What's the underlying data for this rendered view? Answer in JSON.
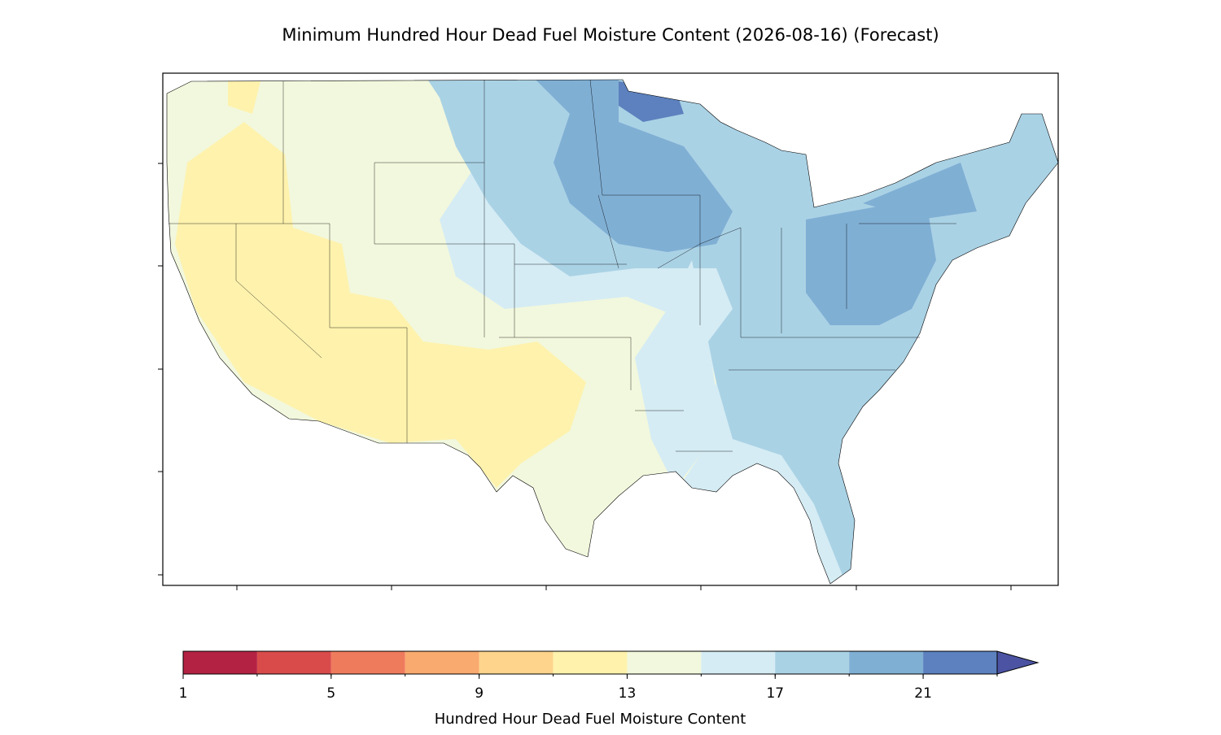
{
  "title": "Minimum Hundred Hour Dead Fuel Moisture Content (2026-08-16) (Forecast)",
  "colorbar": {
    "label": "Hundred Hour Dead Fuel Moisture Content",
    "boundaries": [
      1,
      3,
      5,
      7,
      9,
      11,
      13,
      15,
      17,
      19,
      21,
      23
    ],
    "colors": [
      "#b42243",
      "#d94b4b",
      "#ef7b5d",
      "#f9aa6e",
      "#fed48c",
      "#fef2ad",
      "#f2f8dd",
      "#d5ecf4",
      "#aad2e5",
      "#80afd4",
      "#5c81be"
    ],
    "extend_color": "#4b53a2",
    "ticks": [
      1,
      5,
      9,
      13,
      17,
      21
    ]
  }
}
